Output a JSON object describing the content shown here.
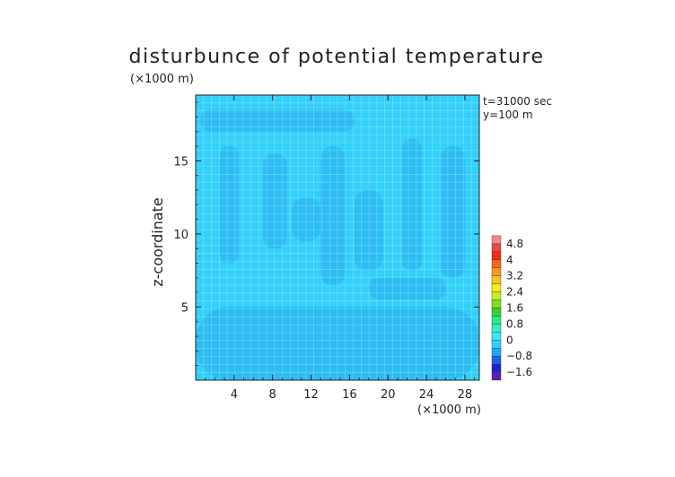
{
  "chart_data": {
    "type": "heatmap",
    "title": "disturbunce of potential temperature",
    "ylabel": "z-coordinate",
    "y_unit": "(×1000 m)",
    "x_unit": "(×1000 m)",
    "annotation": [
      "t=31000 sec",
      "y=100 m"
    ],
    "xlim": [
      0,
      29.5
    ],
    "ylim": [
      0,
      19.5
    ],
    "x_ticks": [
      4,
      8,
      12,
      16,
      20,
      24,
      28
    ],
    "y_ticks": [
      5,
      10,
      15
    ],
    "grid": true,
    "colorbar": {
      "labels": [
        "4.8",
        "4",
        "3.2",
        "2.4",
        "1.6",
        "0.8",
        "0",
        "−0.8",
        "−1.6"
      ],
      "levels": [
        -2.0,
        -1.6,
        -1.2,
        -0.8,
        -0.4,
        0.0,
        0.4,
        0.8,
        1.2,
        1.6,
        2.0,
        2.4,
        2.8,
        3.2,
        3.6,
        4.0,
        4.4,
        4.8,
        5.2
      ],
      "colors": [
        "#5a1fb8",
        "#2020d8",
        "#1e5ef0",
        "#1ea8f8",
        "#2ad2ff",
        "#39e8f2",
        "#2ef0c8",
        "#28e888",
        "#30d830",
        "#7ce020",
        "#c8ee18",
        "#f0f018",
        "#f8c818",
        "#f89820",
        "#f86818",
        "#f02c18",
        "#f04848",
        "#f28a8a"
      ]
    },
    "field": {
      "background_value": 0.1,
      "background_color": "#33d0fa",
      "negative_color": "#2cbaf1",
      "negative_regions": [
        {
          "x": [
            0,
            29.5
          ],
          "y": [
            0,
            5.0
          ]
        },
        {
          "x": [
            0.5,
            16.5
          ],
          "y": [
            17.0,
            18.5
          ]
        },
        {
          "x": [
            2.5,
            4.5
          ],
          "y": [
            8.0,
            16.0
          ]
        },
        {
          "x": [
            7.0,
            9.5
          ],
          "y": [
            9.0,
            15.5
          ]
        },
        {
          "x": [
            13.0,
            15.5
          ],
          "y": [
            6.5,
            16.0
          ]
        },
        {
          "x": [
            16.5,
            19.5
          ],
          "y": [
            7.5,
            13.0
          ]
        },
        {
          "x": [
            21.5,
            23.5
          ],
          "y": [
            7.5,
            16.5
          ]
        },
        {
          "x": [
            25.5,
            28.0
          ],
          "y": [
            7.0,
            16.0
          ]
        },
        {
          "x": [
            10.0,
            13.0
          ],
          "y": [
            9.5,
            12.5
          ]
        },
        {
          "x": [
            18.0,
            26.0
          ],
          "y": [
            5.5,
            7.0
          ]
        }
      ]
    }
  }
}
